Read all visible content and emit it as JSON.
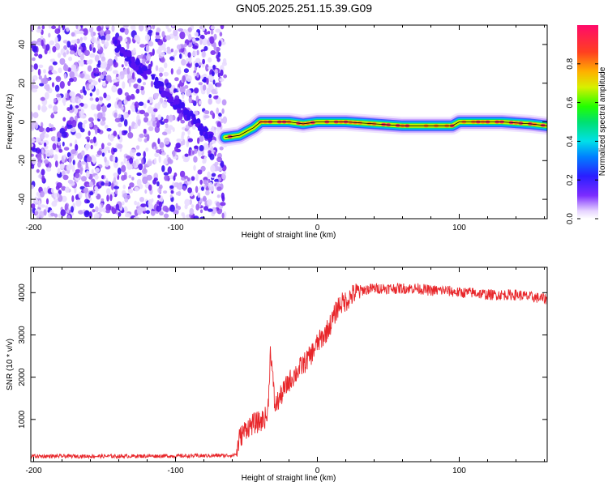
{
  "figure": {
    "title": "GN05.2025.251.15.39.G09"
  },
  "chart_data": [
    {
      "type": "heatmap",
      "title": "",
      "xlabel": "Height of straight line (km)",
      "ylabel": "Frequency (Hz)",
      "xlim": [
        -202,
        162
      ],
      "ylim": [
        -50,
        50
      ],
      "xticks": [
        -200,
        -100,
        0,
        100
      ],
      "yticks": [
        -40,
        -20,
        0,
        20,
        40
      ],
      "grid": false,
      "colorbar": {
        "label": "Normalized spectral amplitude",
        "range": [
          0,
          1
        ],
        "ticks": [
          0.0,
          0.2,
          0.4,
          0.6,
          0.8
        ]
      },
      "description_of_values": {
        "noise_region_km": [
          -202,
          -65
        ],
        "descending_streak": {
          "x": [
            -145,
            -75
          ],
          "y": [
            42,
            -8
          ]
        },
        "signal_track": {
          "x": [
            -65,
            -55,
            -50,
            -45,
            -40,
            -30,
            -20,
            -10,
            0,
            10,
            20,
            40,
            60,
            80,
            95,
            100,
            110,
            130,
            150,
            162
          ],
          "y": [
            -8,
            -7,
            -5,
            -3,
            0,
            0,
            0,
            -1,
            0,
            0,
            0,
            -1,
            -2,
            -2,
            -2,
            0,
            0,
            0,
            -1,
            -2
          ]
        }
      }
    },
    {
      "type": "line",
      "title": "",
      "xlabel": "Height of straight line (km)",
      "ylabel": "SNR (10 * v/v)",
      "xlim": [
        -202,
        162
      ],
      "ylim": [
        0,
        4600
      ],
      "xticks": [
        -200,
        -100,
        0,
        100
      ],
      "yticks": [
        1000,
        2000,
        3000,
        4000
      ],
      "grid": false,
      "series": [
        {
          "color": "#e8262a",
          "x": [
            -202,
            -180,
            -160,
            -140,
            -120,
            -100,
            -80,
            -60,
            -57,
            -55,
            -50,
            -45,
            -40,
            -35,
            -33,
            -30,
            -25,
            -20,
            -15,
            -10,
            -5,
            0,
            5,
            10,
            15,
            20,
            25,
            30,
            40,
            50,
            60,
            70,
            80,
            90,
            100,
            110,
            120,
            130,
            140,
            150,
            162
          ],
          "y": [
            130,
            130,
            130,
            130,
            135,
            135,
            140,
            150,
            180,
            550,
            800,
            900,
            950,
            1100,
            2700,
            1300,
            1600,
            1900,
            2100,
            2300,
            2500,
            2800,
            3000,
            3300,
            3700,
            3800,
            3950,
            4050,
            4100,
            4100,
            4100,
            4100,
            4050,
            4050,
            4000,
            4000,
            3950,
            3950,
            3950,
            3900,
            3850
          ]
        }
      ]
    }
  ]
}
